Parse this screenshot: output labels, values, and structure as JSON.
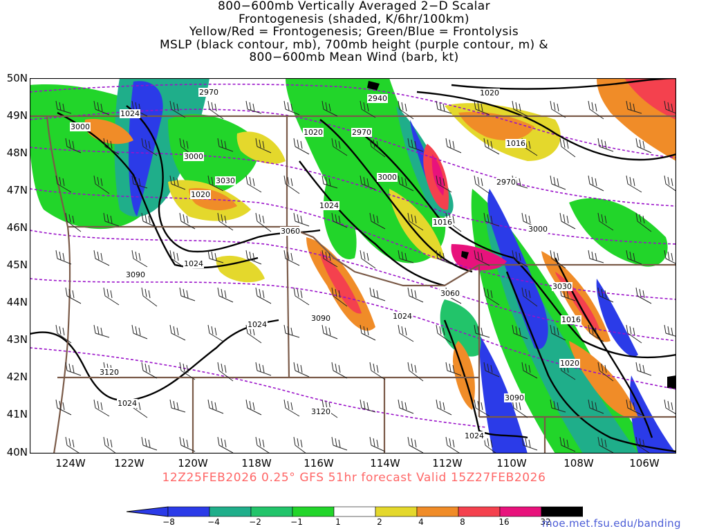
{
  "title": {
    "lines": [
      "800−600mb Vertically Averaged 2−D Scalar",
      "Frontogenesis (shaded, K/6hr/100km)",
      "Yellow/Red = Frontogenesis;  Green/Blue = Frontolysis",
      "MSLP (black contour, mb), 700mb height (purple contour, m) &",
      "800−600mb Mean Wind (barb, kt)"
    ]
  },
  "axes": {
    "lat_labels": [
      "50N",
      "49N",
      "48N",
      "47N",
      "46N",
      "45N",
      "44N",
      "43N",
      "42N",
      "41N",
      "40N"
    ],
    "lon_labels": [
      "124W",
      "122W",
      "120W",
      "118W",
      "116W",
      "114W",
      "112W",
      "110W",
      "108W",
      "106W"
    ]
  },
  "footer": "12Z25FEB2026 0.25° GFS 51hr forecast Valid 15Z27FEB2026",
  "credit": "moe.met.fsu.edu/banding",
  "colorbar": {
    "labels": [
      "−8",
      "−4",
      "−2",
      "−1",
      "1",
      "2",
      "4",
      "8",
      "16",
      "32"
    ],
    "colors": [
      "#2b3be8",
      "#1fae8a",
      "#22c46a",
      "#22d52a",
      "#ffffff",
      "#e4d82c",
      "#f08c28",
      "#f4414e",
      "#e8127c",
      "#000000"
    ],
    "low_color": "#2b3be8",
    "high_color": "#bbbbbb"
  },
  "legend_colors": {
    "mslp_contour": "#000000",
    "height_contour": "#9a11c9",
    "borders": "#7a5a48"
  },
  "contour_labels": {
    "mslp": [
      "1024",
      "1020",
      "1020",
      "1016",
      "1016",
      "1020",
      "1024",
      "1024",
      "1024",
      "1024",
      "1016",
      "1020",
      "1024",
      "1024"
    ],
    "height": [
      "2970",
      "2940",
      "2970",
      "3000",
      "3030",
      "3000",
      "2970",
      "3000",
      "3060",
      "3060",
      "3090",
      "3090",
      "3030",
      "3120",
      "3120",
      "3090",
      "3000"
    ]
  }
}
